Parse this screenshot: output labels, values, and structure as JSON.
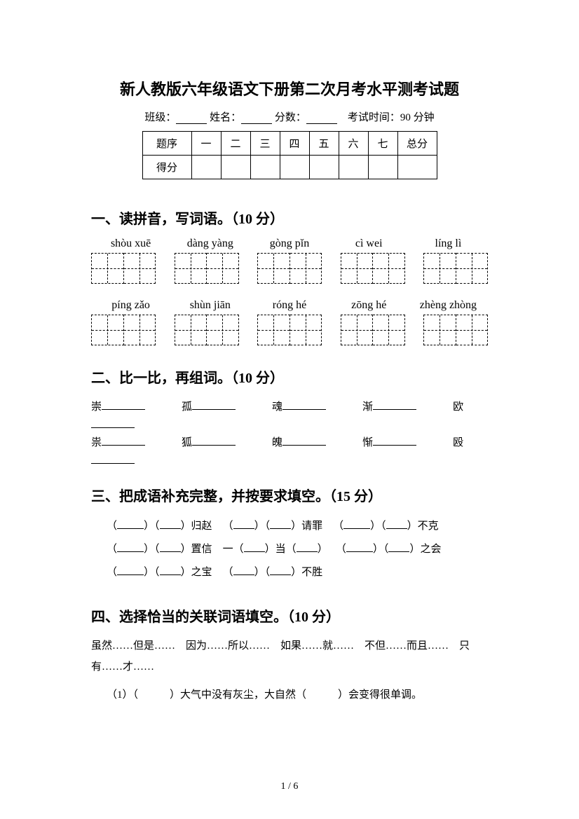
{
  "title": "新人教版六年级语文下册第二次月考水平测考试题",
  "meta": {
    "class_label": "班级：",
    "name_label": "姓名：",
    "score_label": "分数：",
    "exam_time_label": "考试时间：90 分钟"
  },
  "score_table": {
    "row1_label": "题序",
    "row2_label": "得分",
    "cols": [
      "一",
      "二",
      "三",
      "四",
      "五",
      "六",
      "七"
    ],
    "total": "总分"
  },
  "section1": {
    "heading": "一、读拼音，写词语。（10 分）",
    "row1": [
      "shòu xuē",
      "dàng yàng",
      "gòng pǐn",
      "cì wei",
      "líng lì"
    ],
    "row2": [
      "píng zǎo",
      "shùn jiān",
      "róng hé",
      "zōng hé",
      "zhèng zhòng"
    ]
  },
  "section2": {
    "heading": "二、比一比，再组词。（10 分）",
    "row1": [
      "崇",
      "孤",
      "魂",
      "渐",
      "欧"
    ],
    "row2": [
      "祟",
      "狐",
      "魄",
      "惭",
      "殴"
    ]
  },
  "section3": {
    "heading": "三、把成语补充完整，并按要求填空。（15 分）",
    "items": {
      "a1": "归赵",
      "a2": "请罪",
      "a3": "不克",
      "b1": "置信",
      "b2_pre": "一",
      "b2_mid": "当",
      "b3": "之会",
      "c1": "之宝",
      "c2": "不胜"
    }
  },
  "section4": {
    "heading": "四、选择恰当的关联词语填空。（10 分）",
    "options": "虽然……但是……　因为……所以……　如果……就……　不但……而且……　只有……才……",
    "q1": "（1）（　　　）大气中没有灰尘，大自然（　　　）会变得很单调。"
  },
  "footer": "1 / 6"
}
